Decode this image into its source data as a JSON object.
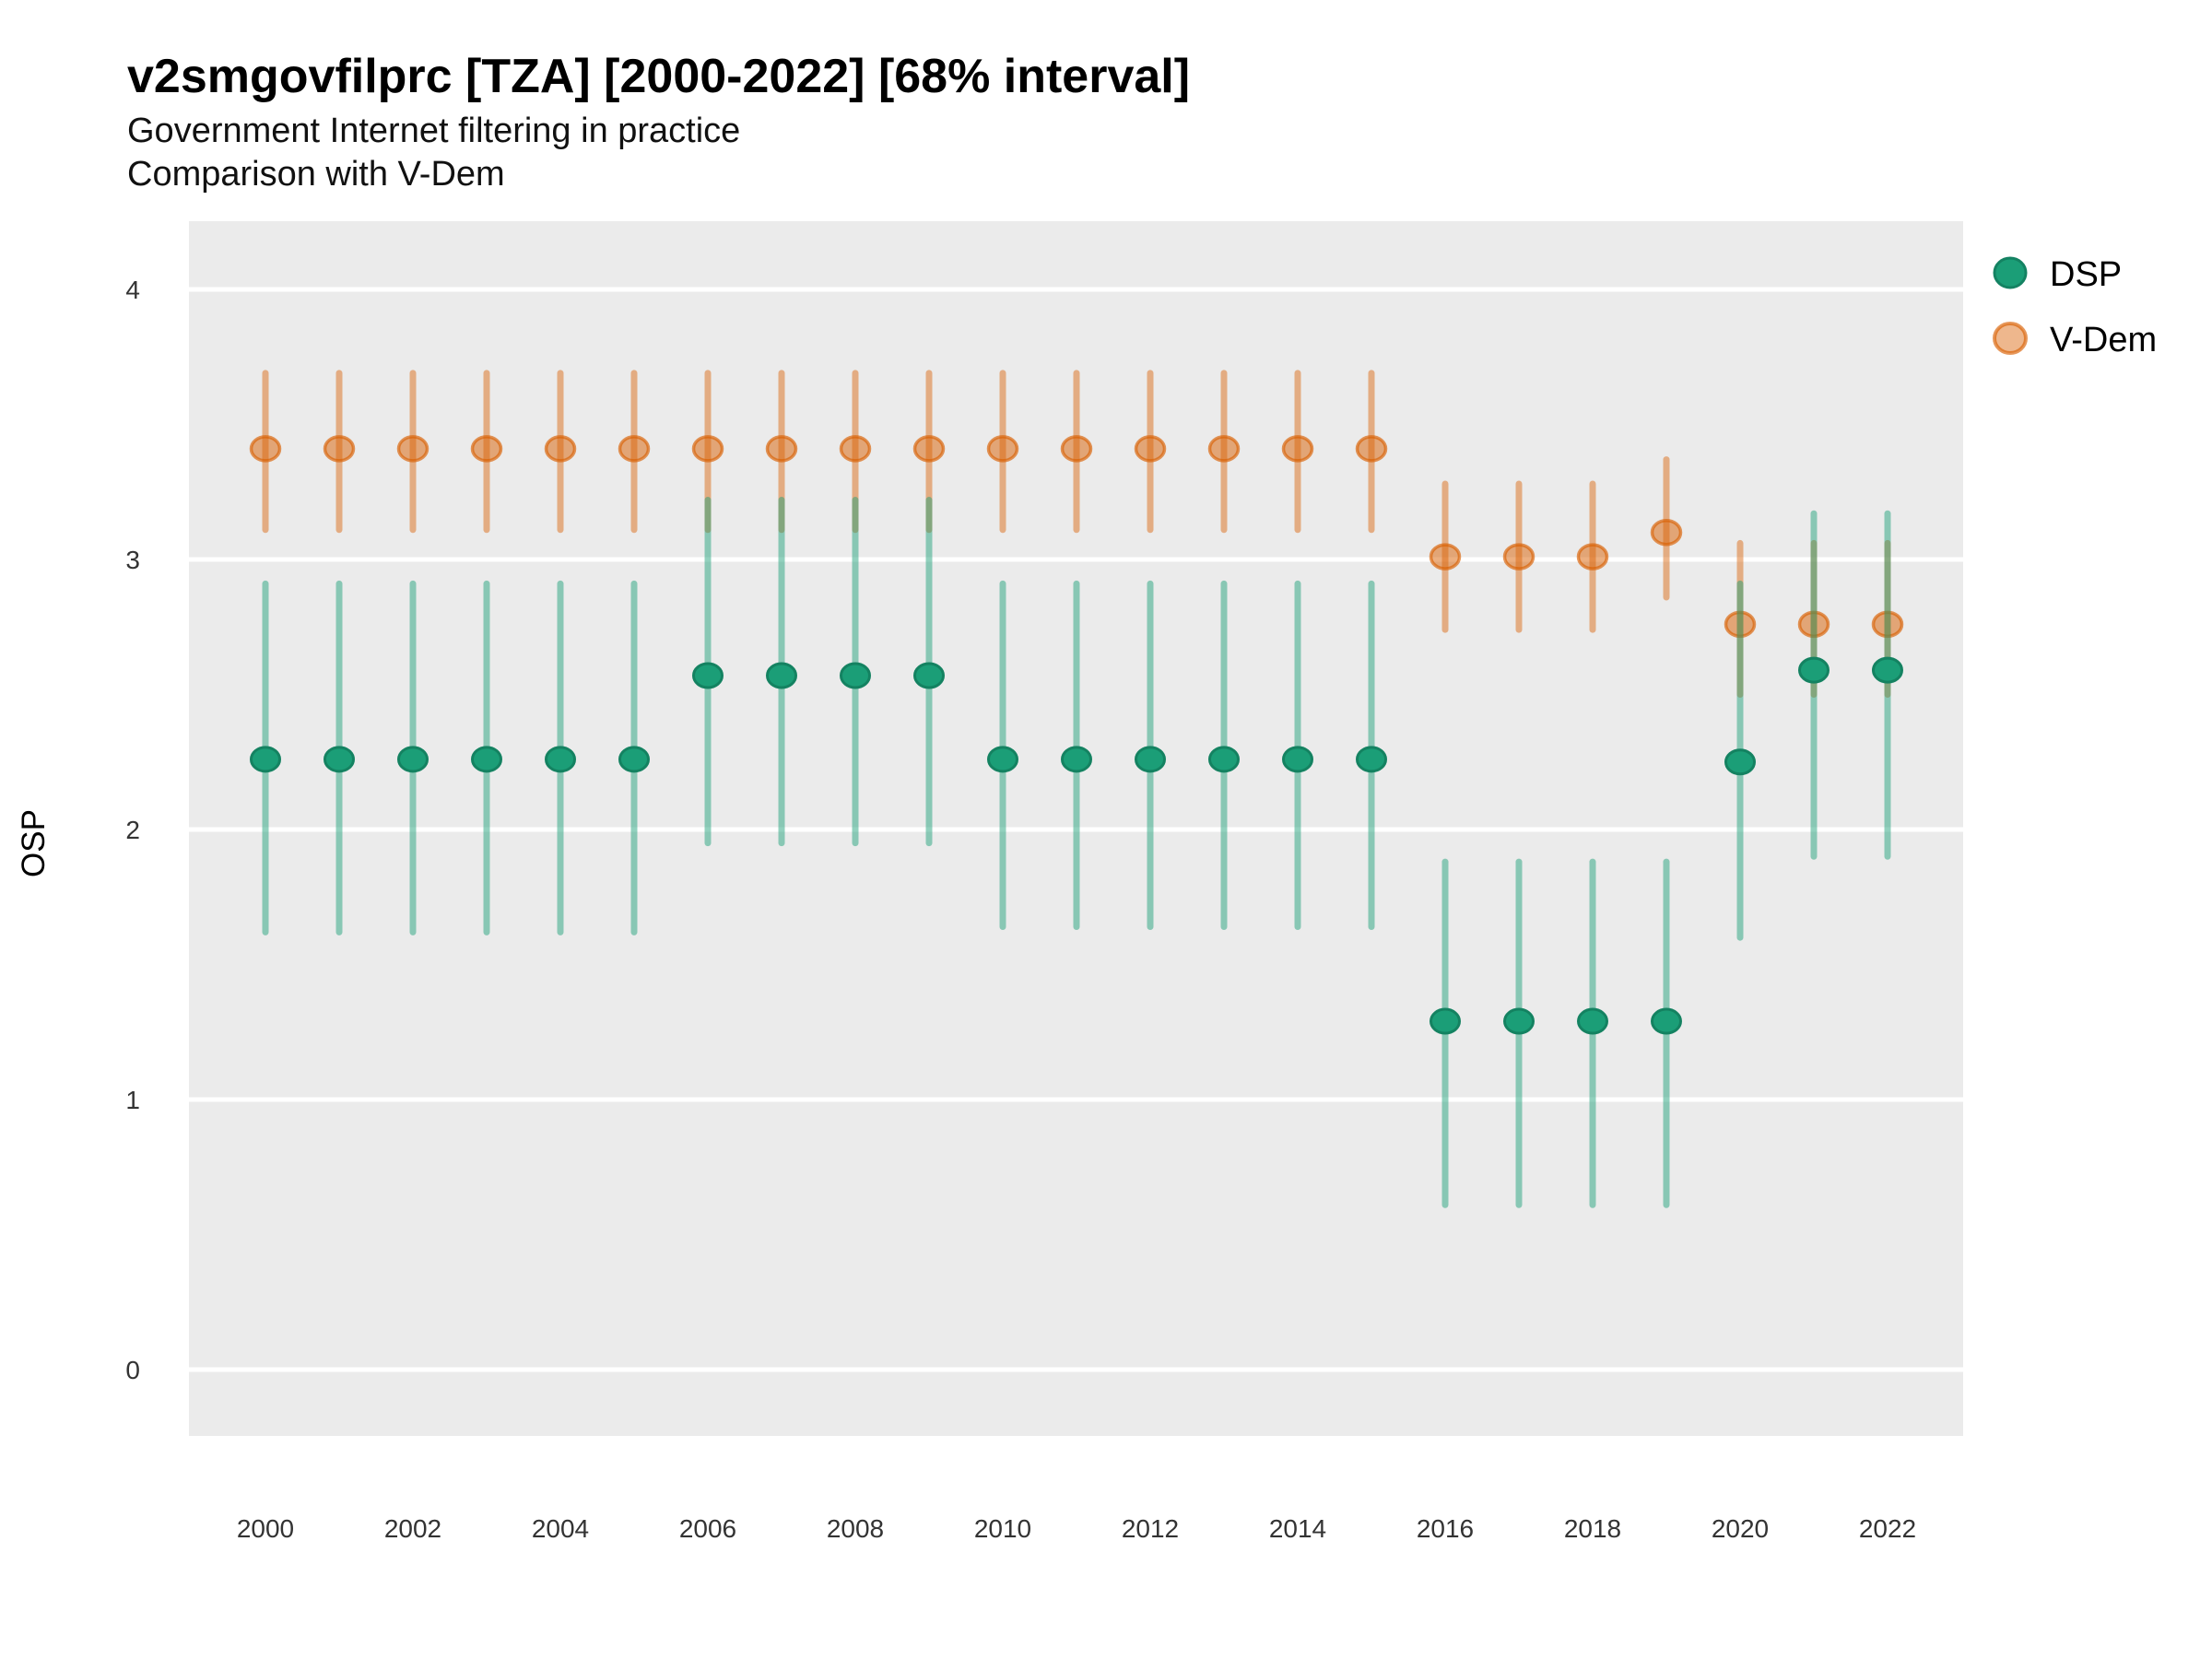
{
  "header": {
    "title": "v2smgovfilprc [TZA] [2000-2022] [68% interval]",
    "subtitle_line1": "Government Internet filtering in practice",
    "subtitle_line2": "Comparison with V-Dem"
  },
  "chart_data": {
    "type": "pointrange",
    "title": "v2smgovfilprc [TZA] [2000-2022] [68% interval]",
    "subtitle": [
      "Government Internet filtering in practice",
      "Comparison with V-Dem"
    ],
    "xlabel": "",
    "ylabel": "OSP",
    "x_ticks": [
      2000,
      2002,
      2004,
      2006,
      2008,
      2010,
      2012,
      2014,
      2016,
      2018,
      2020,
      2022
    ],
    "y_ticks": [
      0,
      1,
      2,
      3,
      4
    ],
    "ylim": [
      -0.25,
      4.25
    ],
    "xlim": [
      1998.9,
      2023.1
    ],
    "interval_level": "68%",
    "grid": "major-horizontal-white-on-gray",
    "legend_position": "top-right",
    "colors": {
      "panel_background": "#EBEBEB",
      "gridline": "#FFFFFF",
      "dsp_base": "#1B9E77",
      "vdem_base": "#D95F02",
      "axis_text": "#333333",
      "title_text": "#000000"
    },
    "series": [
      {
        "name": "DSP",
        "color": "#1B9E77",
        "points": [
          {
            "year": 2000,
            "value": 2.26,
            "low": 1.62,
            "high": 2.91
          },
          {
            "year": 2001,
            "value": 2.26,
            "low": 1.62,
            "high": 2.91
          },
          {
            "year": 2002,
            "value": 2.26,
            "low": 1.62,
            "high": 2.91
          },
          {
            "year": 2003,
            "value": 2.26,
            "low": 1.62,
            "high": 2.91
          },
          {
            "year": 2004,
            "value": 2.26,
            "low": 1.62,
            "high": 2.91
          },
          {
            "year": 2005,
            "value": 2.26,
            "low": 1.62,
            "high": 2.91
          },
          {
            "year": 2006,
            "value": 2.57,
            "low": 1.95,
            "high": 3.22
          },
          {
            "year": 2007,
            "value": 2.57,
            "low": 1.95,
            "high": 3.22
          },
          {
            "year": 2008,
            "value": 2.57,
            "low": 1.95,
            "high": 3.22
          },
          {
            "year": 2009,
            "value": 2.57,
            "low": 1.95,
            "high": 3.22
          },
          {
            "year": 2010,
            "value": 2.26,
            "low": 1.64,
            "high": 2.91
          },
          {
            "year": 2011,
            "value": 2.26,
            "low": 1.64,
            "high": 2.91
          },
          {
            "year": 2012,
            "value": 2.26,
            "low": 1.64,
            "high": 2.91
          },
          {
            "year": 2013,
            "value": 2.26,
            "low": 1.64,
            "high": 2.91
          },
          {
            "year": 2014,
            "value": 2.26,
            "low": 1.64,
            "high": 2.91
          },
          {
            "year": 2015,
            "value": 2.26,
            "low": 1.64,
            "high": 2.91
          },
          {
            "year": 2016,
            "value": 1.29,
            "low": 0.61,
            "high": 1.88
          },
          {
            "year": 2017,
            "value": 1.29,
            "low": 0.61,
            "high": 1.88
          },
          {
            "year": 2018,
            "value": 1.29,
            "low": 0.61,
            "high": 1.88
          },
          {
            "year": 2019,
            "value": 1.29,
            "low": 0.61,
            "high": 1.88
          },
          {
            "year": 2020,
            "value": 2.25,
            "low": 1.6,
            "high": 2.91
          },
          {
            "year": 2021,
            "value": 2.59,
            "low": 1.9,
            "high": 3.17
          },
          {
            "year": 2022,
            "value": 2.59,
            "low": 1.9,
            "high": 3.17
          }
        ]
      },
      {
        "name": "V-Dem",
        "color": "#D95F02",
        "points": [
          {
            "year": 2000,
            "value": 3.41,
            "low": 3.11,
            "high": 3.69
          },
          {
            "year": 2001,
            "value": 3.41,
            "low": 3.11,
            "high": 3.69
          },
          {
            "year": 2002,
            "value": 3.41,
            "low": 3.11,
            "high": 3.69
          },
          {
            "year": 2003,
            "value": 3.41,
            "low": 3.11,
            "high": 3.69
          },
          {
            "year": 2004,
            "value": 3.41,
            "low": 3.11,
            "high": 3.69
          },
          {
            "year": 2005,
            "value": 3.41,
            "low": 3.11,
            "high": 3.69
          },
          {
            "year": 2006,
            "value": 3.41,
            "low": 3.11,
            "high": 3.69
          },
          {
            "year": 2007,
            "value": 3.41,
            "low": 3.11,
            "high": 3.69
          },
          {
            "year": 2008,
            "value": 3.41,
            "low": 3.11,
            "high": 3.69
          },
          {
            "year": 2009,
            "value": 3.41,
            "low": 3.11,
            "high": 3.69
          },
          {
            "year": 2010,
            "value": 3.41,
            "low": 3.11,
            "high": 3.69
          },
          {
            "year": 2011,
            "value": 3.41,
            "low": 3.11,
            "high": 3.69
          },
          {
            "year": 2012,
            "value": 3.41,
            "low": 3.11,
            "high": 3.69
          },
          {
            "year": 2013,
            "value": 3.41,
            "low": 3.11,
            "high": 3.69
          },
          {
            "year": 2014,
            "value": 3.41,
            "low": 3.11,
            "high": 3.69
          },
          {
            "year": 2015,
            "value": 3.41,
            "low": 3.11,
            "high": 3.69
          },
          {
            "year": 2016,
            "value": 3.01,
            "low": 2.74,
            "high": 3.28
          },
          {
            "year": 2017,
            "value": 3.01,
            "low": 2.74,
            "high": 3.28
          },
          {
            "year": 2018,
            "value": 3.01,
            "low": 2.74,
            "high": 3.28
          },
          {
            "year": 2019,
            "value": 3.1,
            "low": 2.86,
            "high": 3.37
          },
          {
            "year": 2020,
            "value": 2.76,
            "low": 2.5,
            "high": 3.06
          },
          {
            "year": 2021,
            "value": 2.76,
            "low": 2.5,
            "high": 3.06
          },
          {
            "year": 2022,
            "value": 2.76,
            "low": 2.5,
            "high": 3.06
          }
        ]
      }
    ]
  }
}
